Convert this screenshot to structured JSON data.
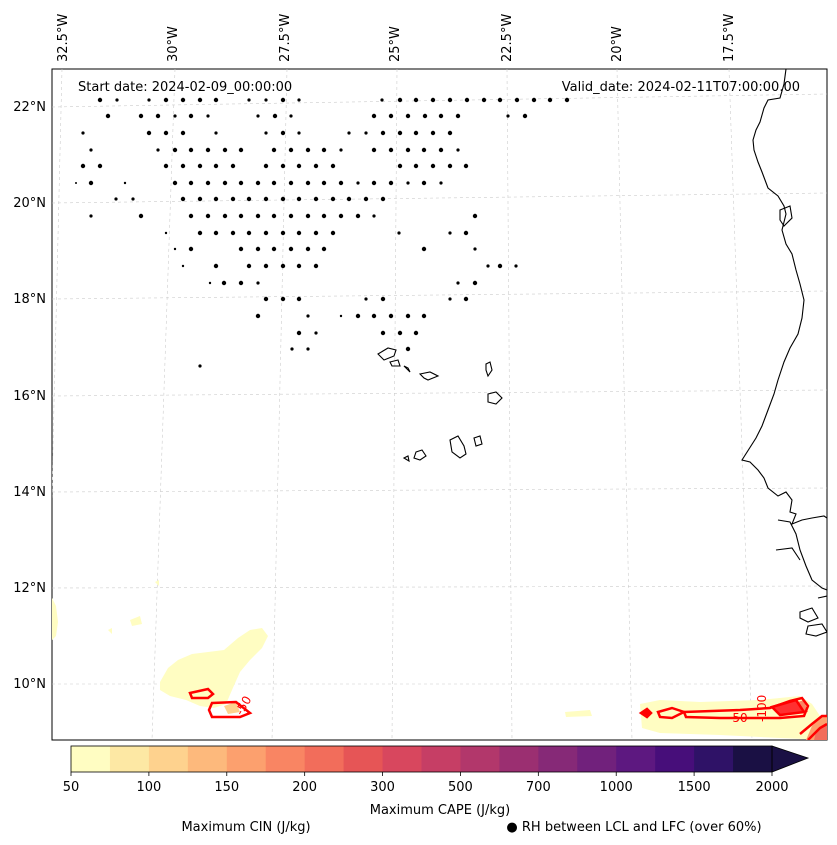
{
  "map": {
    "start_date": "Start date: 2024-02-09_00:00:00",
    "valid_date": "Valid_date: 2024-02-11T07:00:00.00",
    "longitude_labels": [
      "32.5°W",
      "30°W",
      "27.5°W",
      "25°W",
      "22.5°W",
      "20°W",
      "17.5°W"
    ],
    "latitude_labels": [
      "22°N",
      "20°N",
      "18°N",
      "16°N",
      "14°N",
      "12°N",
      "10°N"
    ],
    "cin_contour_labels": [
      "-50",
      "-100",
      "-50"
    ]
  },
  "colorbar": {
    "ticks": [
      "50",
      "100",
      "150",
      "200",
      "300",
      "500",
      "700",
      "1000",
      "1500",
      "2000"
    ],
    "colors": [
      "#fffdc2",
      "#fde8a4",
      "#fed28e",
      "#fdb97c",
      "#fca06e",
      "#f98563",
      "#f26d5b",
      "#e65556",
      "#d8475e",
      "#c63e65",
      "#b2376b",
      "#9b2f71",
      "#862977",
      "#71217c",
      "#5d1880",
      "#470e7a",
      "#2f1267",
      "#1a1044"
    ],
    "title": "Maximum CAPE (J/kg)"
  },
  "legend": {
    "cin_label": "Maximum CIN (J/kg)",
    "cin_color": "#ff0000",
    "rh_label": "● RH between LCL and LFC (over 60%)"
  }
}
